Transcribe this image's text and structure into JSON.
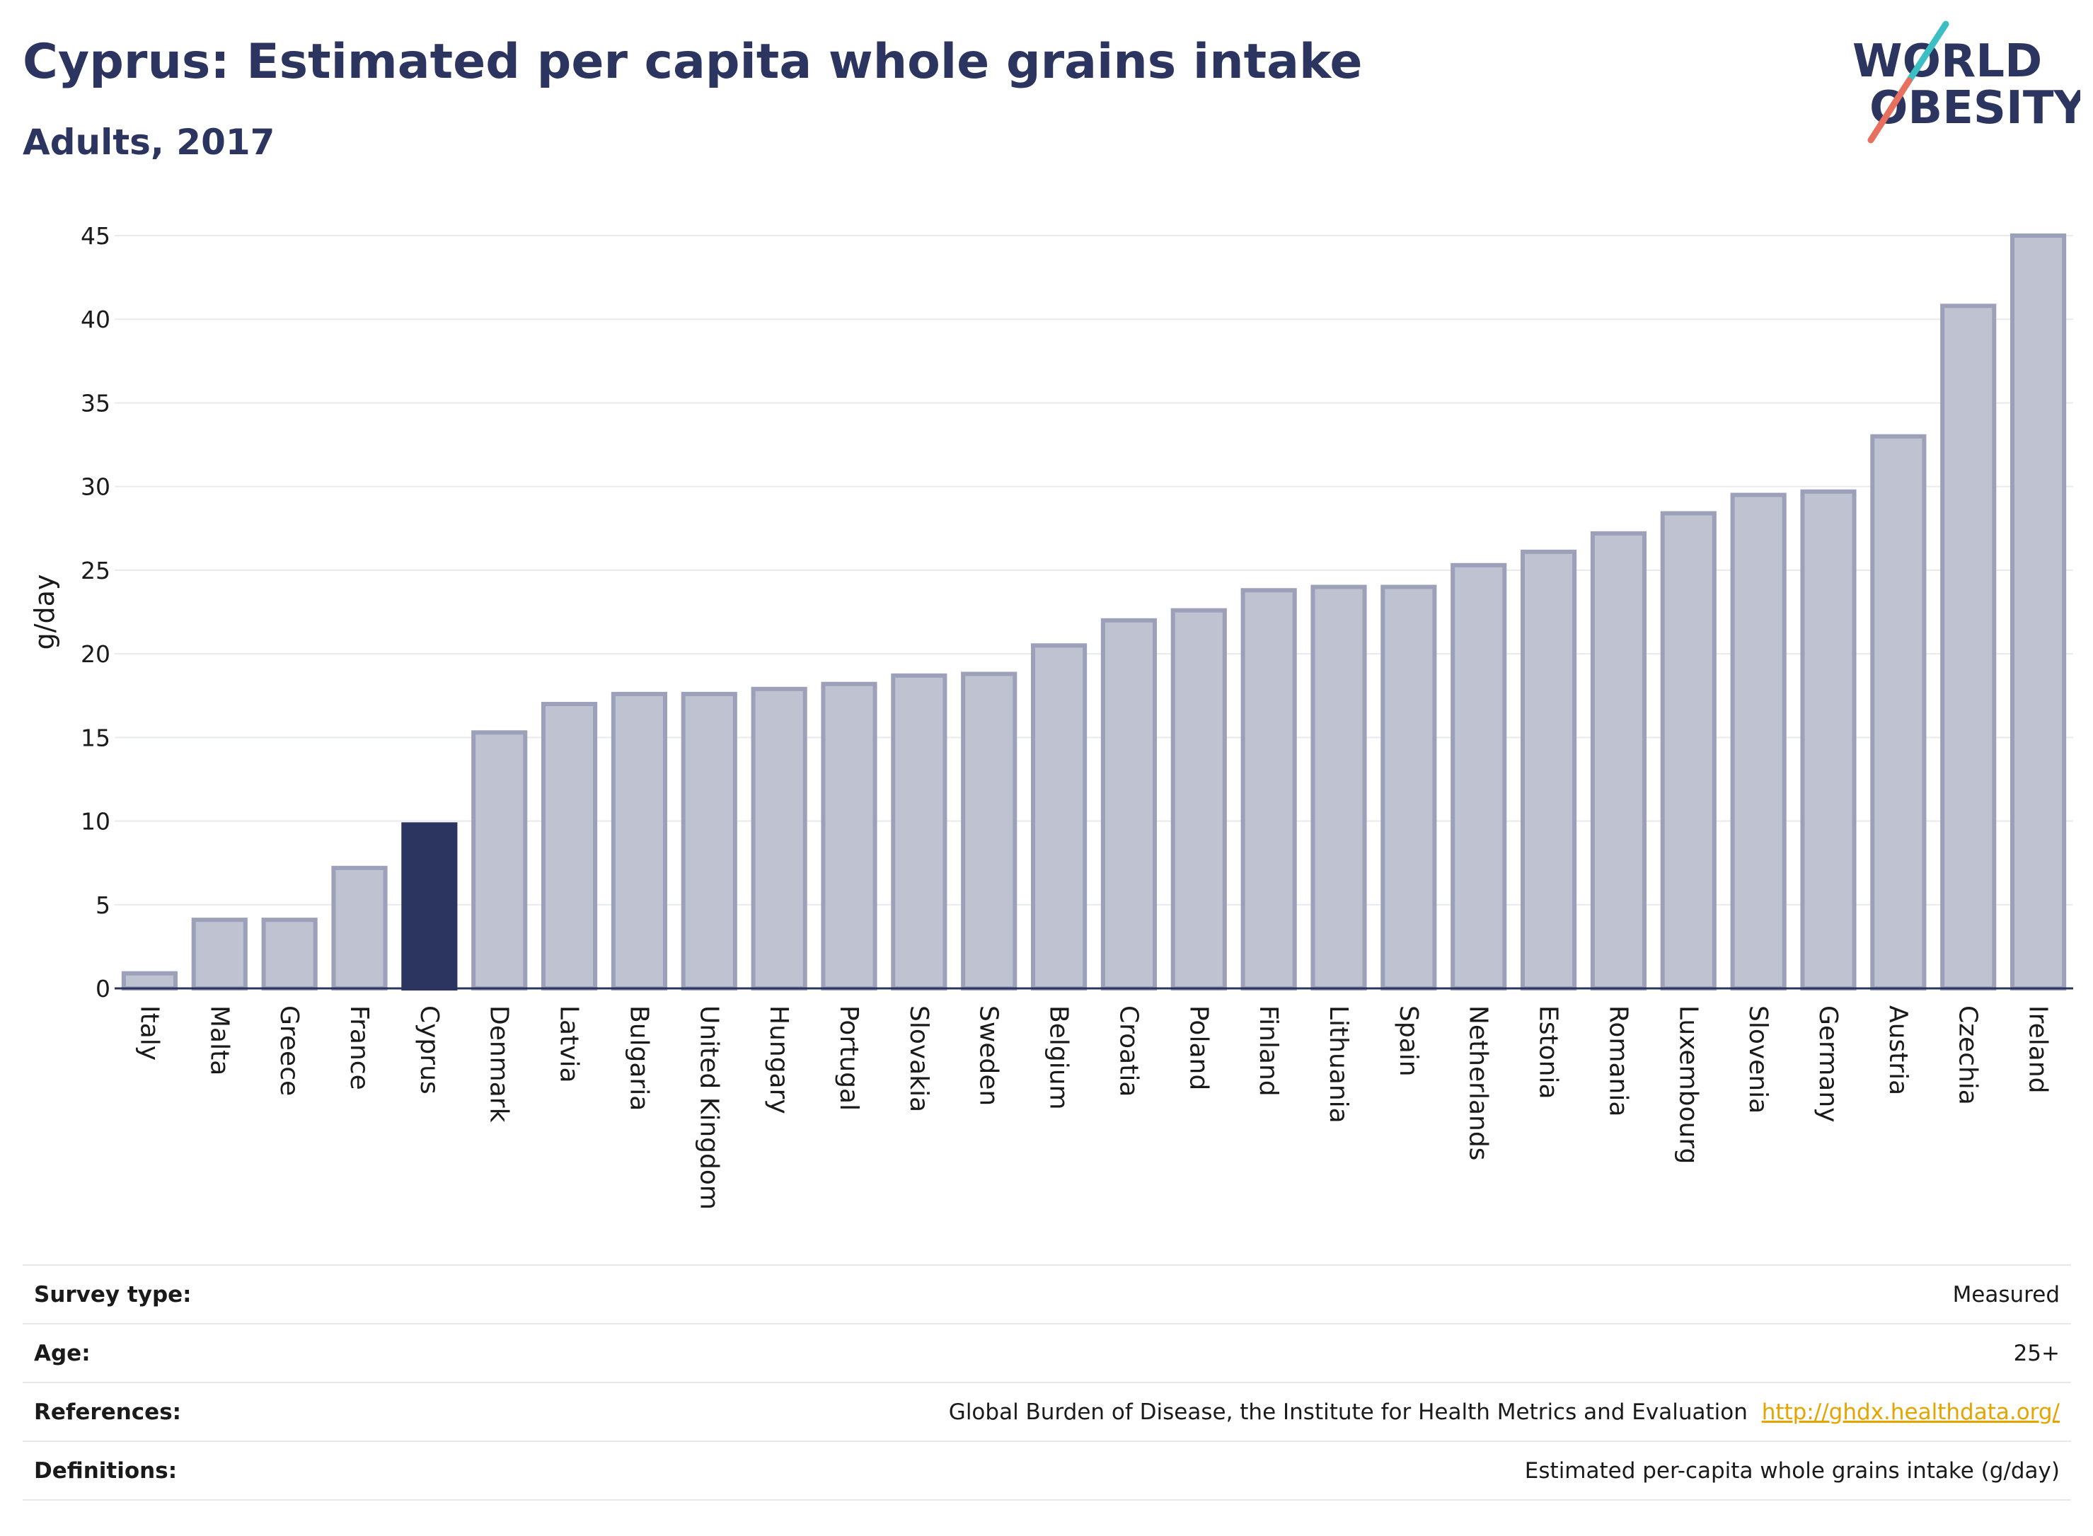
{
  "header": {
    "title": "Cyprus: Estimated per capita whole grains intake",
    "subtitle": "Adults, 2017"
  },
  "logo": {
    "line1": "WORLD",
    "line2": "OBESITY",
    "colors": {
      "text": "#2b3560",
      "slash_teal": "#3cbfc4",
      "slash_coral": "#e8705f"
    }
  },
  "chart_data": {
    "type": "bar",
    "ylabel": "g/day",
    "ylim": [
      0,
      45
    ],
    "yticks": [
      0,
      5,
      10,
      15,
      20,
      25,
      30,
      35,
      40,
      45
    ],
    "grid": true,
    "highlight": "Cyprus",
    "colors": {
      "bar_fill": "#bfc2d0",
      "bar_stroke": "#9ca0b8",
      "highlight_fill": "#2b3560",
      "grid": "#e8eaef",
      "axis": "#2b3560"
    },
    "categories": [
      "Italy",
      "Malta",
      "Greece",
      "France",
      "Cyprus",
      "Denmark",
      "Latvia",
      "Bulgaria",
      "United Kingdom",
      "Hungary",
      "Portugal",
      "Slovakia",
      "Sweden",
      "Belgium",
      "Croatia",
      "Poland",
      "Finland",
      "Lithuania",
      "Spain",
      "Netherlands",
      "Estonia",
      "Romania",
      "Luxembourg",
      "Slovenia",
      "Germany",
      "Austria",
      "Czechia",
      "Ireland"
    ],
    "values": [
      0.9,
      4.1,
      4.1,
      7.2,
      9.8,
      15.3,
      17.0,
      17.6,
      17.6,
      17.9,
      18.2,
      18.7,
      18.8,
      20.5,
      22.0,
      22.6,
      23.8,
      24.0,
      24.0,
      25.3,
      26.1,
      27.2,
      28.4,
      29.5,
      29.7,
      33.0,
      40.8,
      45.0
    ]
  },
  "info": {
    "survey_type": {
      "label": "Survey type:",
      "value": "Measured"
    },
    "age": {
      "label": "Age:",
      "value": "25+"
    },
    "references": {
      "label": "References:",
      "value": "Global Burden of Disease, the Institute for Health Metrics and Evaluation",
      "link": "http://ghdx.healthdata.org/"
    },
    "definitions": {
      "label": "Definitions:",
      "value": "Estimated per-capita whole grains intake (g/day)"
    }
  }
}
